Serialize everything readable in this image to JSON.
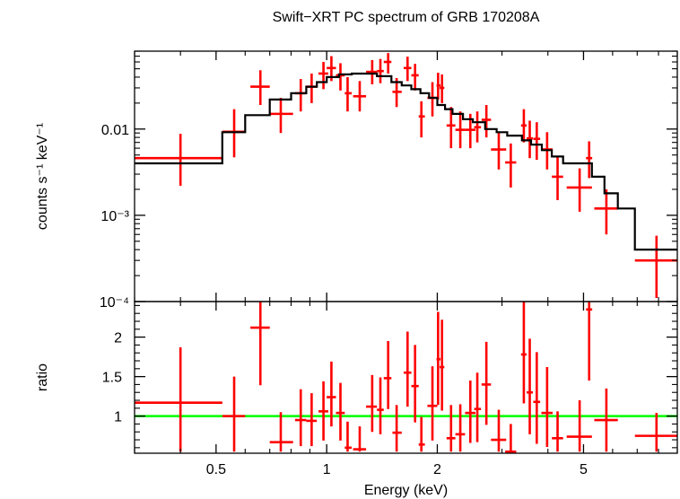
{
  "chart_data": [
    {
      "panel": "spectrum",
      "type": "scatter",
      "title": "Swift−XRT PC spectrum of GRB 170208A",
      "ylabel": "counts s⁻¹ keV⁻¹",
      "xscale": "log",
      "yscale": "log",
      "xlim": [
        0.3,
        9.0
      ],
      "ylim": [
        0.0001,
        0.08
      ],
      "ytick_labels": [
        "0.01",
        "10⁻³",
        "10⁻⁴"
      ],
      "series": [
        {
          "kind": "data_with_errors",
          "color": "#ff0000",
          "points": [
            {
              "x": 0.4,
              "xlo": 0.3,
              "xhi": 0.52,
              "y": 0.0046,
              "ylo": 0.0022,
              "yhi": 0.0088
            },
            {
              "x": 0.56,
              "xlo": 0.52,
              "xhi": 0.6,
              "y": 0.0093,
              "ylo": 0.0047,
              "yhi": 0.017
            },
            {
              "x": 0.66,
              "xlo": 0.62,
              "xhi": 0.7,
              "y": 0.031,
              "ylo": 0.019,
              "yhi": 0.048
            },
            {
              "x": 0.75,
              "xlo": 0.7,
              "xhi": 0.81,
              "y": 0.015,
              "ylo": 0.009,
              "yhi": 0.023
            },
            {
              "x": 0.85,
              "xlo": 0.82,
              "xhi": 0.88,
              "y": 0.026,
              "ylo": 0.016,
              "yhi": 0.038
            },
            {
              "x": 0.91,
              "xlo": 0.88,
              "xhi": 0.94,
              "y": 0.031,
              "ylo": 0.02,
              "yhi": 0.044
            },
            {
              "x": 0.98,
              "xlo": 0.95,
              "xhi": 1.01,
              "y": 0.044,
              "ylo": 0.029,
              "yhi": 0.06
            },
            {
              "x": 1.03,
              "xlo": 1.0,
              "xhi": 1.06,
              "y": 0.051,
              "ylo": 0.036,
              "yhi": 0.07
            },
            {
              "x": 1.09,
              "xlo": 1.06,
              "xhi": 1.12,
              "y": 0.042,
              "ylo": 0.028,
              "yhi": 0.058
            },
            {
              "x": 1.14,
              "xlo": 1.12,
              "xhi": 1.17,
              "y": 0.026,
              "ylo": 0.016,
              "yhi": 0.04
            },
            {
              "x": 1.23,
              "xlo": 1.18,
              "xhi": 1.28,
              "y": 0.024,
              "ylo": 0.016,
              "yhi": 0.036
            },
            {
              "x": 1.33,
              "xlo": 1.28,
              "xhi": 1.37,
              "y": 0.046,
              "ylo": 0.033,
              "yhi": 0.063
            },
            {
              "x": 1.4,
              "xlo": 1.37,
              "xhi": 1.43,
              "y": 0.047,
              "ylo": 0.034,
              "yhi": 0.065
            },
            {
              "x": 1.47,
              "xlo": 1.43,
              "xhi": 1.5,
              "y": 0.06,
              "ylo": 0.044,
              "yhi": 0.076
            },
            {
              "x": 1.55,
              "xlo": 1.51,
              "xhi": 1.6,
              "y": 0.027,
              "ylo": 0.018,
              "yhi": 0.039
            },
            {
              "x": 1.66,
              "xlo": 1.62,
              "xhi": 1.7,
              "y": 0.051,
              "ylo": 0.036,
              "yhi": 0.069
            },
            {
              "x": 1.74,
              "xlo": 1.7,
              "xhi": 1.78,
              "y": 0.042,
              "ylo": 0.028,
              "yhi": 0.057
            },
            {
              "x": 1.81,
              "xlo": 1.78,
              "xhi": 1.85,
              "y": 0.014,
              "ylo": 0.008,
              "yhi": 0.021
            },
            {
              "x": 1.94,
              "xlo": 1.88,
              "xhi": 2.0,
              "y": 0.023,
              "ylo": 0.014,
              "yhi": 0.035
            },
            {
              "x": 2.01,
              "xlo": 1.99,
              "xhi": 2.04,
              "y": 0.032,
              "ylo": 0.022,
              "yhi": 0.045
            },
            {
              "x": 2.06,
              "xlo": 2.03,
              "xhi": 2.09,
              "y": 0.03,
              "ylo": 0.02,
              "yhi": 0.043
            },
            {
              "x": 2.18,
              "xlo": 2.12,
              "xhi": 2.24,
              "y": 0.011,
              "ylo": 0.006,
              "yhi": 0.018
            },
            {
              "x": 2.31,
              "xlo": 2.24,
              "xhi": 2.38,
              "y": 0.0098,
              "ylo": 0.006,
              "yhi": 0.016
            },
            {
              "x": 2.46,
              "xlo": 2.38,
              "xhi": 2.54,
              "y": 0.0098,
              "ylo": 0.006,
              "yhi": 0.015
            },
            {
              "x": 2.57,
              "xlo": 2.52,
              "xhi": 2.63,
              "y": 0.0105,
              "ylo": 0.007,
              "yhi": 0.016
            },
            {
              "x": 2.72,
              "xlo": 2.64,
              "xhi": 2.8,
              "y": 0.0128,
              "ylo": 0.008,
              "yhi": 0.019
            },
            {
              "x": 2.94,
              "xlo": 2.8,
              "xhi": 3.08,
              "y": 0.0058,
              "ylo": 0.0034,
              "yhi": 0.0092
            },
            {
              "x": 3.17,
              "xlo": 3.06,
              "xhi": 3.28,
              "y": 0.0041,
              "ylo": 0.0021,
              "yhi": 0.0068
            },
            {
              "x": 3.44,
              "xlo": 3.38,
              "xhi": 3.5,
              "y": 0.011,
              "ylo": 0.007,
              "yhi": 0.017
            },
            {
              "x": 3.57,
              "xlo": 3.5,
              "xhi": 3.64,
              "y": 0.0078,
              "ylo": 0.0046,
              "yhi": 0.0125
            },
            {
              "x": 3.73,
              "xlo": 3.65,
              "xhi": 3.81,
              "y": 0.0077,
              "ylo": 0.0044,
              "yhi": 0.012
            },
            {
              "x": 3.98,
              "xlo": 3.84,
              "xhi": 4.12,
              "y": 0.0058,
              "ylo": 0.0034,
              "yhi": 0.0092
            },
            {
              "x": 4.25,
              "xlo": 4.1,
              "xhi": 4.4,
              "y": 0.0028,
              "ylo": 0.0015,
              "yhi": 0.0048
            },
            {
              "x": 4.88,
              "xlo": 4.5,
              "xhi": 5.27,
              "y": 0.0021,
              "ylo": 0.0011,
              "yhi": 0.0035
            },
            {
              "x": 5.18,
              "xlo": 5.08,
              "xhi": 5.28,
              "y": 0.0046,
              "ylo": 0.0027,
              "yhi": 0.0072
            },
            {
              "x": 5.77,
              "xlo": 5.35,
              "xhi": 6.2,
              "y": 0.0012,
              "ylo": 0.0006,
              "yhi": 0.002
            },
            {
              "x": 7.9,
              "xlo": 6.9,
              "xhi": 9.0,
              "y": 0.0003,
              "ylo": 0.00011,
              "yhi": 0.00058
            }
          ]
        },
        {
          "kind": "model_histogram",
          "color": "#000000",
          "edges": [
            0.3,
            0.52,
            0.6,
            0.7,
            0.8,
            0.88,
            0.94,
            1.0,
            1.08,
            1.17,
            1.27,
            1.37,
            1.5,
            1.6,
            1.7,
            1.8,
            1.9,
            2.0,
            2.1,
            2.2,
            2.35,
            2.5,
            2.7,
            2.9,
            3.1,
            3.4,
            3.6,
            3.85,
            4.1,
            4.4,
            5.27,
            5.7,
            6.2,
            6.9,
            9.0
          ],
          "values": [
            0.004,
            0.0092,
            0.0145,
            0.022,
            0.026,
            0.031,
            0.035,
            0.04,
            0.043,
            0.044,
            0.044,
            0.041,
            0.035,
            0.032,
            0.029,
            0.026,
            0.023,
            0.019,
            0.017,
            0.015,
            0.013,
            0.012,
            0.01,
            0.0092,
            0.0084,
            0.0074,
            0.0066,
            0.0057,
            0.0048,
            0.004,
            0.0028,
            0.0018,
            0.0012,
            0.0004
          ]
        }
      ]
    },
    {
      "panel": "ratio",
      "type": "scatter",
      "xlabel": "Energy (keV)",
      "ylabel": "ratio",
      "xscale": "log",
      "xlim": [
        0.3,
        9.0
      ],
      "ylim": [
        0.53,
        2.45
      ],
      "yticks": [
        1,
        1.5,
        2
      ],
      "ytick_labels": [
        "1",
        "1.5",
        "2"
      ],
      "xtick_labels": [
        "0.5",
        "1",
        "2",
        "5"
      ],
      "reference_line": {
        "y": 1,
        "color": "#00ff00"
      },
      "series": [
        {
          "kind": "data_with_errors",
          "color": "#ff0000",
          "points": [
            {
              "x": 0.4,
              "xlo": 0.3,
              "xhi": 0.52,
              "y": 1.17,
              "ylo": 0.55,
              "yhi": 1.87
            },
            {
              "x": 0.56,
              "xlo": 0.52,
              "xhi": 0.6,
              "y": 1.0,
              "ylo": 0.55,
              "yhi": 1.5
            },
            {
              "x": 0.66,
              "xlo": 0.62,
              "xhi": 0.7,
              "y": 2.12,
              "ylo": 1.39,
              "yhi": 2.5
            },
            {
              "x": 0.75,
              "xlo": 0.7,
              "xhi": 0.81,
              "y": 0.67,
              "ylo": 0.55,
              "yhi": 1.05
            },
            {
              "x": 0.85,
              "xlo": 0.82,
              "xhi": 0.88,
              "y": 0.95,
              "ylo": 0.62,
              "yhi": 1.34
            },
            {
              "x": 0.91,
              "xlo": 0.88,
              "xhi": 0.94,
              "y": 0.94,
              "ylo": 0.62,
              "yhi": 1.29
            },
            {
              "x": 0.98,
              "xlo": 0.95,
              "xhi": 1.01,
              "y": 1.06,
              "ylo": 0.69,
              "yhi": 1.44
            },
            {
              "x": 1.03,
              "xlo": 1.0,
              "xhi": 1.06,
              "y": 1.24,
              "ylo": 0.87,
              "yhi": 1.69
            },
            {
              "x": 1.09,
              "xlo": 1.06,
              "xhi": 1.12,
              "y": 1.04,
              "ylo": 0.69,
              "yhi": 1.42
            },
            {
              "x": 1.14,
              "xlo": 1.12,
              "xhi": 1.17,
              "y": 0.6,
              "ylo": 0.55,
              "yhi": 0.93
            },
            {
              "x": 1.23,
              "xlo": 1.18,
              "xhi": 1.28,
              "y": 0.58,
              "ylo": 0.55,
              "yhi": 0.87
            },
            {
              "x": 1.33,
              "xlo": 1.28,
              "xhi": 1.37,
              "y": 1.12,
              "ylo": 0.8,
              "yhi": 1.52
            },
            {
              "x": 1.4,
              "xlo": 1.37,
              "xhi": 1.43,
              "y": 1.08,
              "ylo": 0.77,
              "yhi": 1.49
            },
            {
              "x": 1.47,
              "xlo": 1.43,
              "xhi": 1.5,
              "y": 1.48,
              "ylo": 1.09,
              "yhi": 1.95
            },
            {
              "x": 1.55,
              "xlo": 1.51,
              "xhi": 1.6,
              "y": 0.79,
              "ylo": 0.55,
              "yhi": 1.14
            },
            {
              "x": 1.66,
              "xlo": 1.62,
              "xhi": 1.7,
              "y": 1.55,
              "ylo": 1.12,
              "yhi": 2.07
            },
            {
              "x": 1.74,
              "xlo": 1.7,
              "xhi": 1.78,
              "y": 1.38,
              "ylo": 0.92,
              "yhi": 1.9
            },
            {
              "x": 1.81,
              "xlo": 1.78,
              "xhi": 1.85,
              "y": 0.64,
              "ylo": 0.55,
              "yhi": 0.99
            },
            {
              "x": 1.94,
              "xlo": 1.88,
              "xhi": 2.0,
              "y": 1.13,
              "ylo": 0.69,
              "yhi": 1.63
            },
            {
              "x": 2.01,
              "xlo": 1.99,
              "xhi": 2.04,
              "y": 1.72,
              "ylo": 1.14,
              "yhi": 2.32
            },
            {
              "x": 2.06,
              "xlo": 2.03,
              "xhi": 2.09,
              "y": 1.62,
              "ylo": 1.07,
              "yhi": 2.22
            },
            {
              "x": 2.18,
              "xlo": 2.12,
              "xhi": 2.24,
              "y": 0.72,
              "ylo": 0.55,
              "yhi": 1.14
            },
            {
              "x": 2.31,
              "xlo": 2.24,
              "xhi": 2.38,
              "y": 0.77,
              "ylo": 0.55,
              "yhi": 1.15
            },
            {
              "x": 2.46,
              "xlo": 2.38,
              "xhi": 2.54,
              "y": 1.04,
              "ylo": 0.66,
              "yhi": 1.45
            },
            {
              "x": 2.57,
              "xlo": 2.52,
              "xhi": 2.63,
              "y": 1.09,
              "ylo": 0.67,
              "yhi": 1.55
            },
            {
              "x": 2.72,
              "xlo": 2.64,
              "xhi": 2.8,
              "y": 1.4,
              "ylo": 0.89,
              "yhi": 1.94
            },
            {
              "x": 2.94,
              "xlo": 2.8,
              "xhi": 3.08,
              "y": 0.7,
              "ylo": 0.55,
              "yhi": 1.08
            },
            {
              "x": 3.17,
              "xlo": 3.06,
              "xhi": 3.28,
              "y": 0.55,
              "ylo": 0.55,
              "yhi": 0.9
            },
            {
              "x": 3.44,
              "xlo": 3.38,
              "xhi": 3.5,
              "y": 1.78,
              "ylo": 1.16,
              "yhi": 2.48
            },
            {
              "x": 3.57,
              "xlo": 3.5,
              "xhi": 3.64,
              "y": 1.3,
              "ylo": 0.77,
              "yhi": 1.98
            },
            {
              "x": 3.73,
              "xlo": 3.65,
              "xhi": 3.81,
              "y": 1.18,
              "ylo": 0.65,
              "yhi": 1.81
            },
            {
              "x": 3.98,
              "xlo": 3.84,
              "xhi": 4.12,
              "y": 1.04,
              "ylo": 0.61,
              "yhi": 1.62
            },
            {
              "x": 4.25,
              "xlo": 4.1,
              "xhi": 4.4,
              "y": 0.72,
              "ylo": 0.55,
              "yhi": 1.06
            },
            {
              "x": 4.88,
              "xlo": 4.5,
              "xhi": 5.27,
              "y": 0.74,
              "ylo": 0.55,
              "yhi": 1.2
            },
            {
              "x": 5.18,
              "xlo": 5.08,
              "xhi": 5.28,
              "y": 2.35,
              "ylo": 1.45,
              "yhi": 2.5
            },
            {
              "x": 5.77,
              "xlo": 5.35,
              "xhi": 6.2,
              "y": 0.95,
              "ylo": 0.55,
              "yhi": 1.35
            },
            {
              "x": 7.9,
              "xlo": 6.9,
              "xhi": 9.0,
              "y": 0.75,
              "ylo": 0.55,
              "yhi": 1.04
            }
          ]
        }
      ]
    }
  ]
}
